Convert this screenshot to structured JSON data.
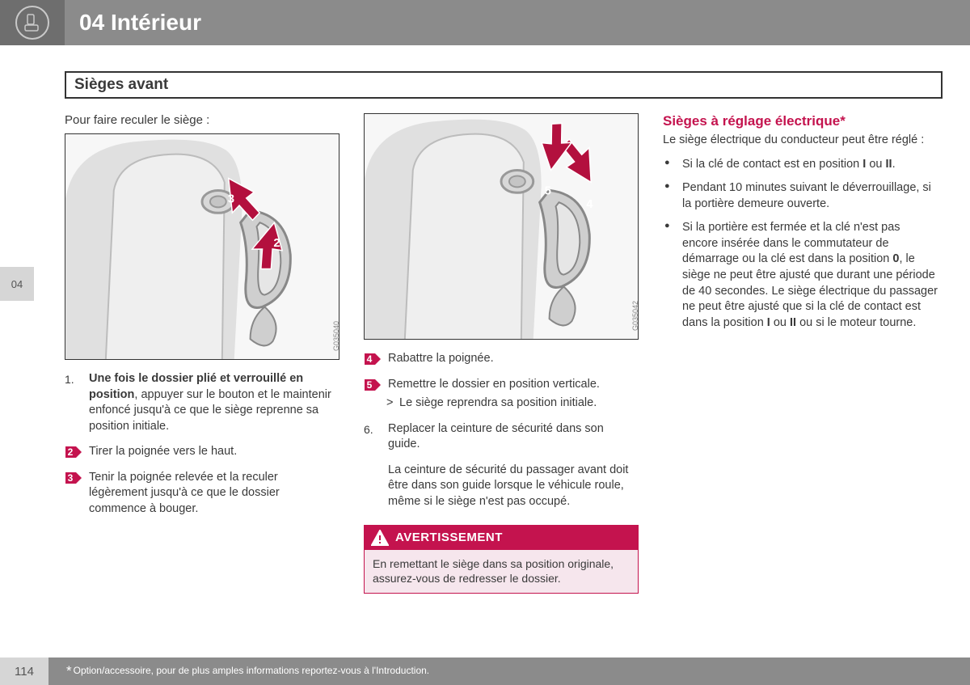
{
  "chapter": {
    "number": "04",
    "title": "Intérieur"
  },
  "side_tab": "04",
  "subtitle": "Sièges avant",
  "col1": {
    "intro": "Pour faire reculer le siège :",
    "fig_ref": "G035040",
    "steps": [
      {
        "num": "1.",
        "kind": "plain",
        "html": "<span class='bold'>Une fois le dossier plié et verrouillé en position</span>, appuyer sur le bouton et le maintenir enfoncé jusqu'à ce que le siège reprenne sa position initiale."
      },
      {
        "num": "2",
        "kind": "marker",
        "html": "Tirer la poignée vers le haut."
      },
      {
        "num": "3",
        "kind": "marker",
        "html": "Tenir la poignée relevée et la reculer légèrement jusqu'à ce que le dossier commence à bouger."
      }
    ]
  },
  "col2": {
    "fig_ref": "G035042",
    "steps": [
      {
        "num": "4",
        "kind": "marker",
        "html": "Rabattre la poignée."
      },
      {
        "num": "5",
        "kind": "marker",
        "html": "Remettre le dossier en position verticale.",
        "result": "Le siège reprendra sa position initiale."
      },
      {
        "num": "6.",
        "kind": "plain",
        "html": "Replacer la ceinture de sécurité dans son guide."
      }
    ],
    "note": "La ceinture de sécurité du passager avant doit être dans son guide lorsque le véhicule roule, même si le siège n'est pas occupé.",
    "warning_title": "AVERTISSEMENT",
    "warning_body": "En remettant le siège dans sa position originale, assurez-vous de redresser le dossier."
  },
  "col3": {
    "heading": "Sièges à réglage électrique*",
    "intro": "Le siège électrique du conducteur peut être réglé :",
    "bullets": [
      "Si la clé de contact est en position <span class='bold'>I</span> ou <span class='bold'>II</span>.",
      "Pendant 10 minutes suivant le déverrouillage, si la portière demeure ouverte.",
      "Si la portière est fermée et la clé n'est pas encore insérée dans le commutateur de démarrage ou la clé est dans la position <span class='bold'>0</span>, le siège ne peut être ajusté que durant une période de 40 secondes. Le siège électrique du passager ne peut être ajusté que si la clé de contact est dans la position <span class='bold'>I</span> ou <span class='bold'>II</span> ou si le moteur tourne."
    ]
  },
  "footer": {
    "page": "114",
    "text": "Option/accessoire, pour de plus amples informations reportez-vous à l'Introduction."
  },
  "colors": {
    "header_bg": "#8b8b8b",
    "accent": "#c4134e",
    "warning_body_bg": "#f6e6ed",
    "sidetab_bg": "#d6d6d6"
  }
}
